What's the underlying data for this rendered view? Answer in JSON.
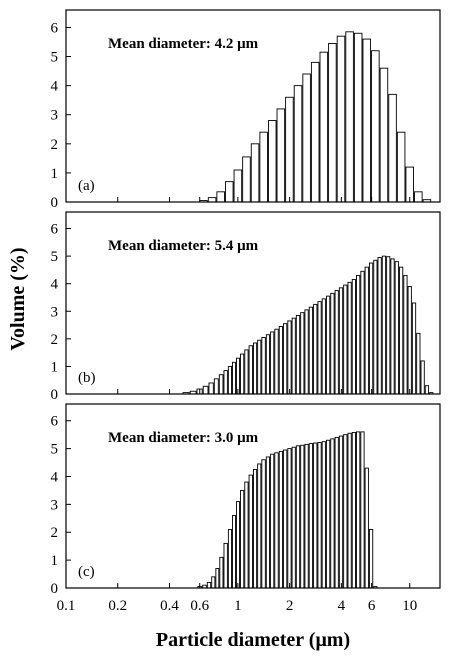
{
  "chart_data": [
    {
      "type": "bar",
      "panel_label": "(a)",
      "annotation": "Mean diameter: 4.2 μm",
      "x_scale": "log",
      "x": [
        0.631,
        0.708,
        0.794,
        0.891,
        1.0,
        1.122,
        1.259,
        1.413,
        1.585,
        1.778,
        1.995,
        2.239,
        2.512,
        2.818,
        3.162,
        3.548,
        3.981,
        4.467,
        5.012,
        5.623,
        6.31,
        7.079,
        7.943,
        8.913,
        10.0,
        11.22,
        12.589
      ],
      "values": [
        0.05,
        0.15,
        0.35,
        0.7,
        1.1,
        1.55,
        2.0,
        2.4,
        2.8,
        3.2,
        3.6,
        4.0,
        4.4,
        4.8,
        5.15,
        5.45,
        5.7,
        5.85,
        5.8,
        5.6,
        5.2,
        4.6,
        3.7,
        2.4,
        1.2,
        0.35,
        0.08
      ],
      "ylim": [
        0,
        6.6
      ],
      "yticks": [
        0,
        1,
        2,
        3,
        4,
        5,
        6
      ]
    },
    {
      "type": "bar",
      "panel_label": "(b)",
      "annotation": "Mean diameter: 5.4 μm",
      "x_scale": "log",
      "x": [
        0.5,
        0.55,
        0.6,
        0.65,
        0.7,
        0.75,
        0.8,
        0.85,
        0.9,
        0.95,
        1.0,
        1.06,
        1.12,
        1.19,
        1.26,
        1.33,
        1.41,
        1.5,
        1.58,
        1.68,
        1.78,
        1.88,
        2.0,
        2.11,
        2.24,
        2.37,
        2.51,
        2.66,
        2.82,
        2.99,
        3.16,
        3.35,
        3.55,
        3.76,
        3.98,
        4.22,
        4.47,
        4.73,
        5.01,
        5.31,
        5.62,
        5.96,
        6.31,
        6.68,
        7.08,
        7.5,
        7.94,
        8.41,
        8.91,
        9.44,
        10.0,
        10.59,
        11.22,
        11.89,
        12.59,
        13.34
      ],
      "values": [
        0.05,
        0.1,
        0.18,
        0.28,
        0.4,
        0.55,
        0.7,
        0.85,
        1.0,
        1.15,
        1.3,
        1.45,
        1.6,
        1.75,
        1.85,
        1.95,
        2.05,
        2.15,
        2.25,
        2.35,
        2.45,
        2.55,
        2.65,
        2.75,
        2.85,
        2.95,
        3.05,
        3.15,
        3.25,
        3.35,
        3.45,
        3.55,
        3.65,
        3.75,
        3.85,
        3.95,
        4.05,
        4.15,
        4.3,
        4.45,
        4.6,
        4.75,
        4.85,
        4.95,
        5.0,
        4.98,
        4.9,
        4.8,
        4.6,
        4.3,
        3.9,
        3.3,
        2.2,
        1.2,
        0.3,
        0.05
      ],
      "ylim": [
        0,
        6.6
      ],
      "yticks": [
        0,
        1,
        2,
        3,
        4,
        5,
        6
      ]
    },
    {
      "type": "bar",
      "panel_label": "(c)",
      "annotation": "Mean diameter: 3.0 μm",
      "x_scale": "log",
      "x": [
        0.6,
        0.64,
        0.68,
        0.72,
        0.76,
        0.8,
        0.85,
        0.9,
        0.95,
        1.0,
        1.06,
        1.12,
        1.19,
        1.26,
        1.33,
        1.41,
        1.5,
        1.58,
        1.68,
        1.78,
        1.88,
        2.0,
        2.11,
        2.24,
        2.37,
        2.51,
        2.66,
        2.82,
        2.99,
        3.16,
        3.35,
        3.55,
        3.76,
        3.98,
        4.22,
        4.47,
        4.73,
        5.01,
        5.31,
        5.62,
        5.96,
        6.31
      ],
      "values": [
        0.05,
        0.1,
        0.2,
        0.4,
        0.7,
        1.1,
        1.6,
        2.1,
        2.6,
        3.1,
        3.5,
        3.8,
        4.05,
        4.25,
        4.45,
        4.6,
        4.7,
        4.8,
        4.85,
        4.9,
        4.95,
        5.0,
        5.05,
        5.1,
        5.12,
        5.15,
        5.18,
        5.2,
        5.22,
        5.25,
        5.3,
        5.35,
        5.4,
        5.45,
        5.5,
        5.55,
        5.58,
        5.6,
        5.6,
        4.3,
        2.1,
        0.05
      ],
      "ylim": [
        0,
        6.6
      ],
      "yticks": [
        0,
        1,
        2,
        3,
        4,
        5,
        6
      ]
    }
  ],
  "x_axis": {
    "xlim": [
      0.1,
      15
    ],
    "tick_values": [
      0.1,
      0.2,
      0.4,
      0.6,
      1,
      2,
      4,
      6,
      10
    ],
    "tick_labels": [
      "0.1",
      "0.2",
      "0.4",
      "0.6",
      "1",
      "2",
      "4",
      "6",
      "10"
    ],
    "label": "Particle diameter (μm)"
  },
  "y_axis": {
    "label": "Volume (%)"
  },
  "colors": {
    "bar_fill": "#ffffff",
    "bar_stroke": "#000000",
    "axis": "#000000"
  }
}
